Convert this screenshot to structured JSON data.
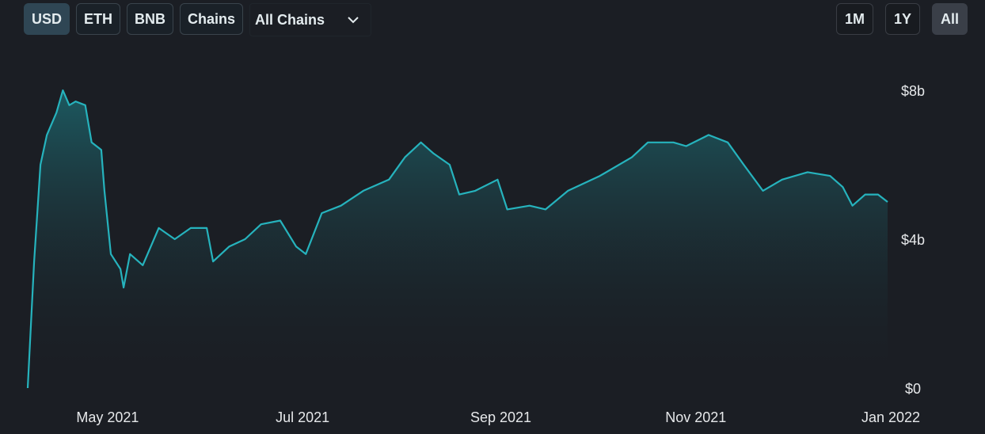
{
  "toolbar": {
    "denominations": [
      "USD",
      "ETH",
      "BNB"
    ],
    "chains_label": "Chains",
    "chain_select": "All Chains",
    "active": "USD"
  },
  "range": {
    "options": [
      "1M",
      "1Y",
      "All"
    ],
    "active": "All"
  },
  "colors": {
    "line": "#26b3bd",
    "background": "#1b1e24"
  },
  "chart_data": {
    "type": "area",
    "title": "",
    "xlabel": "",
    "ylabel": "",
    "x_unit": "days since 2021-05-01",
    "x": [
      -25,
      -23,
      -21,
      -19,
      -16,
      -14,
      -12,
      -10,
      -7,
      -5,
      -2,
      -1,
      1,
      4,
      5,
      7,
      11,
      16,
      21,
      26,
      31,
      33,
      38,
      43,
      48,
      54,
      59,
      62,
      67,
      73,
      80,
      88,
      93,
      98,
      102,
      107,
      110,
      115,
      122,
      125,
      132,
      137,
      144,
      154,
      164,
      169,
      177,
      181,
      188,
      194,
      199,
      205,
      211,
      219,
      226,
      230,
      233,
      237,
      241,
      244
    ],
    "values": [
      0,
      3.4,
      6.0,
      6.8,
      7.4,
      8.0,
      7.6,
      7.7,
      7.6,
      6.6,
      6.4,
      5.3,
      3.6,
      3.2,
      2.7,
      3.6,
      3.3,
      4.3,
      4.0,
      4.3,
      4.3,
      3.4,
      3.8,
      4.0,
      4.4,
      4.5,
      3.8,
      3.6,
      4.7,
      4.9,
      5.3,
      5.6,
      6.2,
      6.6,
      6.3,
      6.0,
      5.2,
      5.3,
      5.6,
      4.8,
      4.9,
      4.8,
      5.3,
      5.7,
      6.2,
      6.6,
      6.6,
      6.5,
      6.8,
      6.6,
      6.0,
      5.3,
      5.6,
      5.8,
      5.7,
      5.4,
      4.9,
      5.2,
      5.2,
      5.0
    ],
    "x_ticks": [
      {
        "label": "May 2021",
        "x": 0
      },
      {
        "label": "Jul 2021",
        "x": 61
      },
      {
        "label": "Sep 2021",
        "x": 123
      },
      {
        "label": "Nov 2021",
        "x": 184
      },
      {
        "label": "Jan 2022",
        "x": 245
      }
    ],
    "y_ticks": [
      {
        "label": "$0",
        "y": 0
      },
      {
        "label": "$4b",
        "y": 4
      },
      {
        "label": "$8b",
        "y": 8
      }
    ],
    "xlim": [
      -25,
      245
    ],
    "ylim": [
      0,
      8
    ],
    "grid": false,
    "unit": "USD billions"
  }
}
